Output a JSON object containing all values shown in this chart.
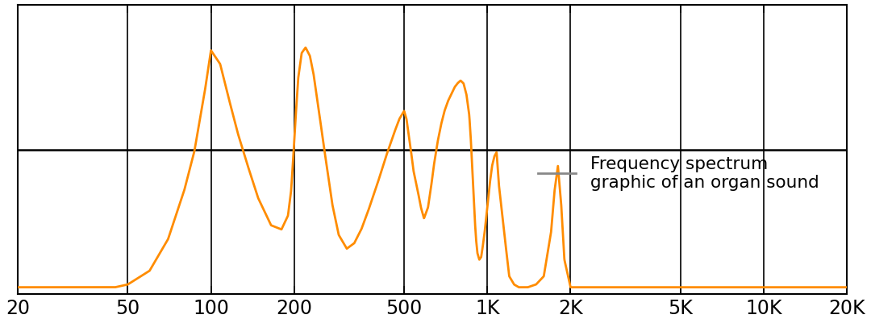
{
  "line_color": "#FF8C00",
  "line_width": 2.0,
  "legend_label": "Frequency spectrum\ngraphic of an organ sound",
  "legend_line_color": "#888888",
  "background_color": "#ffffff",
  "xlim": [
    20,
    20000
  ],
  "ylim": [
    -1.05,
    1.05
  ],
  "xticks": [
    20,
    50,
    100,
    200,
    500,
    1000,
    2000,
    5000,
    10000,
    20000
  ],
  "xticklabels": [
    "20",
    "50",
    "100",
    "200",
    "500",
    "1K",
    "2K",
    "5K",
    "10K",
    "20K"
  ],
  "spine_linewidth": 1.5,
  "ctrl_freq": [
    20,
    45,
    50,
    60,
    70,
    80,
    87,
    95,
    100,
    108,
    115,
    125,
    135,
    148,
    165,
    180,
    190,
    195,
    198,
    202,
    207,
    213,
    220,
    228,
    235,
    245,
    255,
    265,
    275,
    290,
    310,
    330,
    350,
    370,
    400,
    430,
    460,
    480,
    500,
    510,
    520,
    530,
    540,
    560,
    575,
    590,
    610,
    625,
    640,
    660,
    680,
    700,
    720,
    740,
    760,
    780,
    800,
    820,
    840,
    860,
    870,
    880,
    890,
    900,
    910,
    920,
    935,
    950,
    960,
    975,
    990,
    1005,
    1020,
    1040,
    1060,
    1080,
    1100,
    1150,
    1200,
    1250,
    1300,
    1400,
    1500,
    1600,
    1700,
    1750,
    1800,
    1850,
    1900,
    2000,
    3000,
    5000,
    10000,
    20000
  ],
  "ctrl_amp": [
    -1.0,
    -1.0,
    -0.98,
    -0.88,
    -0.65,
    -0.3,
    -0.02,
    0.42,
    0.72,
    0.62,
    0.4,
    0.12,
    -0.1,
    -0.35,
    -0.55,
    -0.58,
    -0.48,
    -0.3,
    -0.1,
    0.2,
    0.52,
    0.7,
    0.74,
    0.68,
    0.55,
    0.3,
    0.05,
    -0.18,
    -0.4,
    -0.62,
    -0.72,
    -0.68,
    -0.58,
    -0.45,
    -0.25,
    -0.05,
    0.12,
    0.22,
    0.28,
    0.22,
    0.1,
    -0.02,
    -0.15,
    -0.3,
    -0.42,
    -0.5,
    -0.42,
    -0.28,
    -0.12,
    0.05,
    0.18,
    0.28,
    0.35,
    0.4,
    0.45,
    0.48,
    0.5,
    0.48,
    0.4,
    0.25,
    0.1,
    -0.1,
    -0.3,
    -0.5,
    -0.65,
    -0.75,
    -0.8,
    -0.78,
    -0.72,
    -0.62,
    -0.5,
    -0.38,
    -0.25,
    -0.12,
    -0.05,
    -0.02,
    -0.25,
    -0.6,
    -0.92,
    -0.98,
    -1.0,
    -1.0,
    -0.98,
    -0.92,
    -0.6,
    -0.3,
    -0.12,
    -0.4,
    -0.8,
    -1.0,
    -1.0,
    -1.0,
    -1.0,
    -1.0
  ]
}
